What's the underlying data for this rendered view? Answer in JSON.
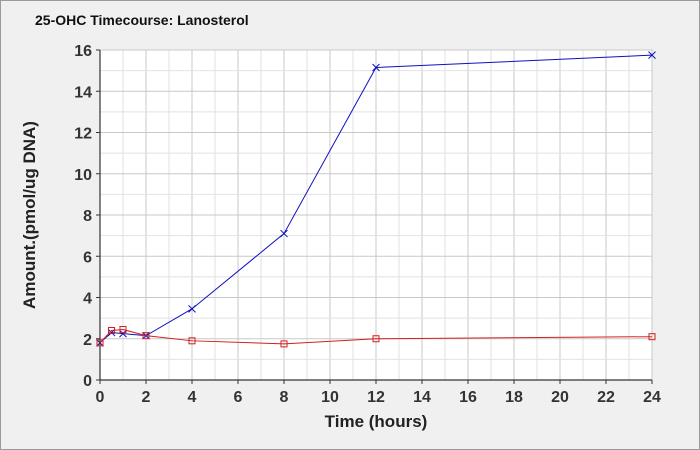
{
  "chart_data": {
    "type": "line",
    "title": "25-OHC Timecourse: Lanosterol",
    "xlabel": "Time (hours)",
    "ylabel": "Amount.(pmol/ug DNA)",
    "xlim": [
      0,
      24
    ],
    "ylim": [
      0,
      16
    ],
    "x_ticks": [
      0,
      2,
      4,
      6,
      8,
      10,
      12,
      14,
      16,
      18,
      20,
      22,
      24
    ],
    "y_ticks": [
      0,
      2,
      4,
      6,
      8,
      10,
      12,
      14,
      16
    ],
    "grid": true,
    "series": [
      {
        "color": "#1010c0",
        "marker": "x",
        "x": [
          0,
          0.5,
          1,
          2,
          4,
          8,
          12,
          24
        ],
        "y": [
          1.8,
          2.3,
          2.25,
          2.15,
          3.45,
          7.1,
          15.15,
          15.75
        ]
      },
      {
        "color": "#d02020",
        "marker": "square",
        "x": [
          0,
          0.5,
          1,
          2,
          4,
          8,
          12,
          24
        ],
        "y": [
          1.8,
          2.4,
          2.45,
          2.15,
          1.9,
          1.75,
          2.0,
          2.1
        ]
      }
    ]
  }
}
